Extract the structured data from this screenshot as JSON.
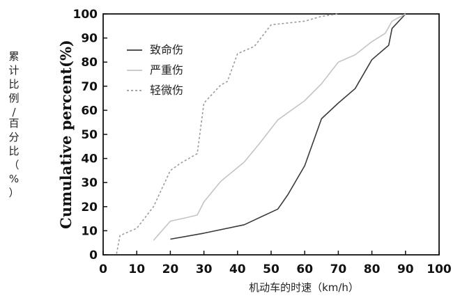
{
  "chart_data": {
    "type": "line",
    "xlabel": "机动车的时速（km/h）",
    "ylabel": "Cumulative percent(%)",
    "ylabel_secondary": "累计比例/百分比（%）",
    "xlim": [
      0,
      100
    ],
    "ylim": [
      0,
      100
    ],
    "xticks": [
      0,
      10,
      20,
      30,
      40,
      50,
      60,
      70,
      80,
      90,
      100
    ],
    "yticks": [
      0,
      10,
      20,
      30,
      40,
      50,
      60,
      70,
      80,
      90,
      100
    ],
    "grid": false,
    "legend_position": "top-left",
    "series": [
      {
        "name": "致命伤",
        "color": "#3a3a3a",
        "style": "solid",
        "points": [
          [
            20,
            6.5
          ],
          [
            30,
            9
          ],
          [
            42,
            12.5
          ],
          [
            52,
            19
          ],
          [
            55,
            25
          ],
          [
            60,
            37
          ],
          [
            65,
            56.5
          ],
          [
            70,
            63
          ],
          [
            75,
            69
          ],
          [
            80,
            81
          ],
          [
            85,
            87
          ],
          [
            86,
            94
          ],
          [
            88,
            97
          ],
          [
            90,
            100
          ]
        ]
      },
      {
        "name": "严重伤",
        "color": "#c4c4c4",
        "style": "solid",
        "points": [
          [
            15,
            6
          ],
          [
            20,
            14
          ],
          [
            25,
            15.5
          ],
          [
            28,
            16.5
          ],
          [
            30,
            22
          ],
          [
            35,
            30.5
          ],
          [
            42,
            38.5
          ],
          [
            47,
            47
          ],
          [
            52,
            56
          ],
          [
            60,
            64
          ],
          [
            65,
            71
          ],
          [
            70,
            80
          ],
          [
            75,
            83
          ],
          [
            80,
            88.5
          ],
          [
            84,
            92
          ],
          [
            86,
            97
          ],
          [
            90,
            100
          ]
        ]
      },
      {
        "name": "轻微伤",
        "color": "#9a9a9a",
        "style": "dotted",
        "points": [
          [
            4,
            0.5
          ],
          [
            5,
            8
          ],
          [
            10,
            11
          ],
          [
            15,
            20
          ],
          [
            20,
            35
          ],
          [
            23,
            38
          ],
          [
            28,
            42
          ],
          [
            30,
            63
          ],
          [
            35,
            70.5
          ],
          [
            37,
            72
          ],
          [
            40,
            83.5
          ],
          [
            45,
            86.5
          ],
          [
            50,
            95.5
          ],
          [
            60,
            97
          ],
          [
            65,
            99
          ],
          [
            70,
            100
          ]
        ]
      }
    ]
  }
}
